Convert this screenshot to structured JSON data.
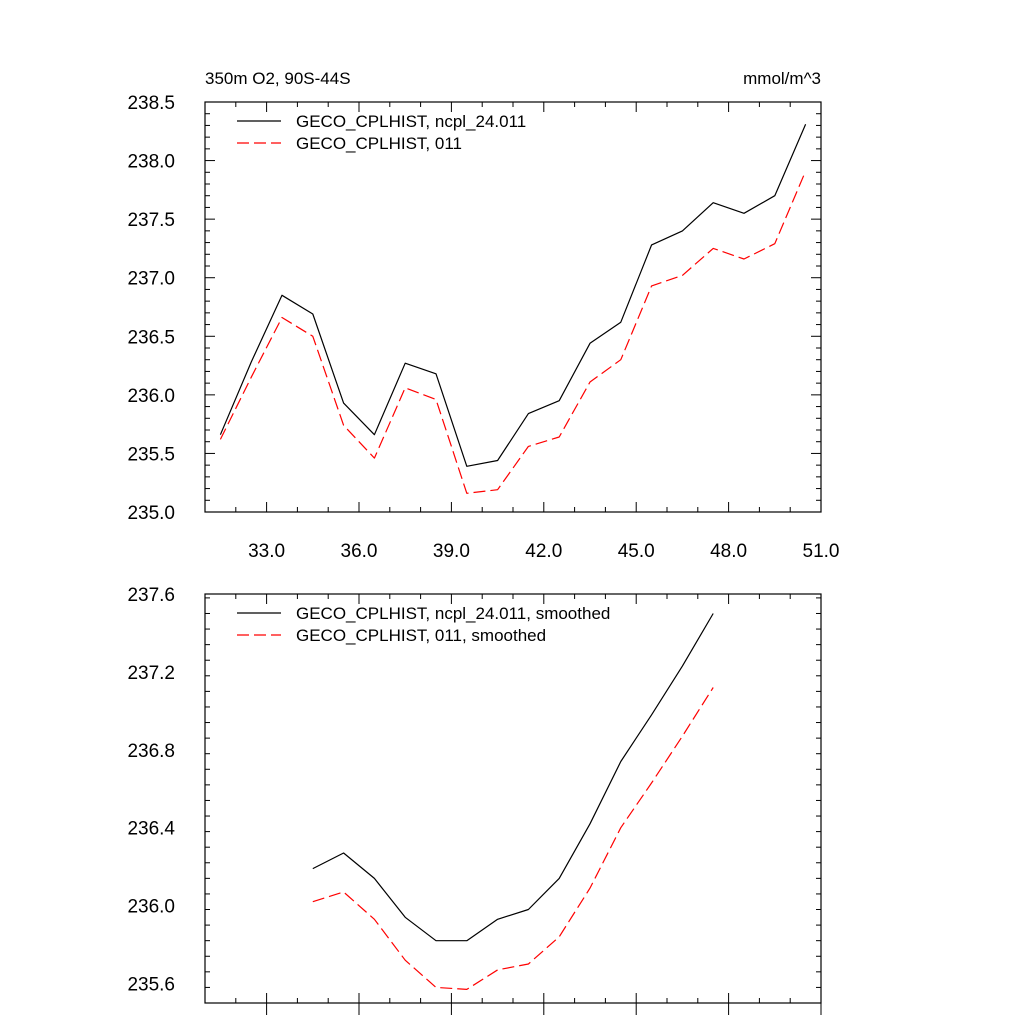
{
  "chart_data": [
    {
      "type": "line",
      "title_left": "350m O2, 90S-44S",
      "title_right": "mmol/m^3",
      "xlim": [
        31.0,
        51.0
      ],
      "ylim": [
        235.0,
        238.5
      ],
      "xticks": [
        "33.0",
        "36.0",
        "39.0",
        "42.0",
        "45.0",
        "48.0",
        "51.0"
      ],
      "yticks": [
        "235.0",
        "235.5",
        "236.0",
        "236.5",
        "237.0",
        "237.5",
        "238.0",
        "238.5"
      ],
      "x": [
        31.5,
        32.5,
        33.5,
        34.5,
        35.5,
        36.5,
        37.5,
        38.5,
        39.5,
        40.5,
        41.5,
        42.5,
        43.5,
        44.5,
        45.5,
        46.5,
        47.5,
        48.5,
        49.5,
        50.5
      ],
      "series": [
        {
          "name": "GECO_CPLHIST, ncpl_24.011",
          "color": "#000000",
          "dash": "solid",
          "values": [
            235.66,
            236.28,
            236.85,
            236.69,
            235.93,
            235.66,
            236.27,
            236.18,
            235.39,
            235.44,
            235.84,
            235.95,
            236.44,
            236.62,
            237.28,
            237.4,
            237.64,
            237.55,
            237.7,
            238.31
          ]
        },
        {
          "name": "GECO_CPLHIST, 011",
          "color": "#ff0000",
          "dash": "dashed",
          "values": [
            235.62,
            236.15,
            236.66,
            236.5,
            235.74,
            235.46,
            236.06,
            235.96,
            235.16,
            235.19,
            235.56,
            235.64,
            236.11,
            236.3,
            236.93,
            237.02,
            237.25,
            237.16,
            237.29,
            237.91
          ]
        }
      ]
    },
    {
      "type": "line",
      "xlim": [
        31.0,
        51.0
      ],
      "ylim": [
        235.5,
        237.6
      ],
      "yticks": [
        "235.6",
        "236.0",
        "236.4",
        "236.8",
        "237.2",
        "237.6"
      ],
      "x": [
        34.5,
        35.5,
        36.5,
        37.5,
        38.5,
        39.5,
        40.5,
        41.5,
        42.5,
        43.5,
        44.5,
        45.5,
        46.5,
        47.5
      ],
      "series": [
        {
          "name": "GECO_CPLHIST, ncpl_24.011, smoothed",
          "color": "#000000",
          "dash": "solid",
          "values": [
            236.19,
            236.27,
            236.14,
            235.94,
            235.82,
            235.82,
            235.93,
            235.98,
            236.14,
            236.42,
            236.74,
            236.98,
            237.23,
            237.5
          ]
        },
        {
          "name": "GECO_CPLHIST, 011, smoothed",
          "color": "#ff0000",
          "dash": "dashed",
          "values": [
            236.02,
            236.07,
            235.93,
            235.72,
            235.58,
            235.57,
            235.67,
            235.7,
            235.84,
            236.09,
            236.4,
            236.63,
            236.87,
            237.12
          ]
        }
      ]
    }
  ]
}
